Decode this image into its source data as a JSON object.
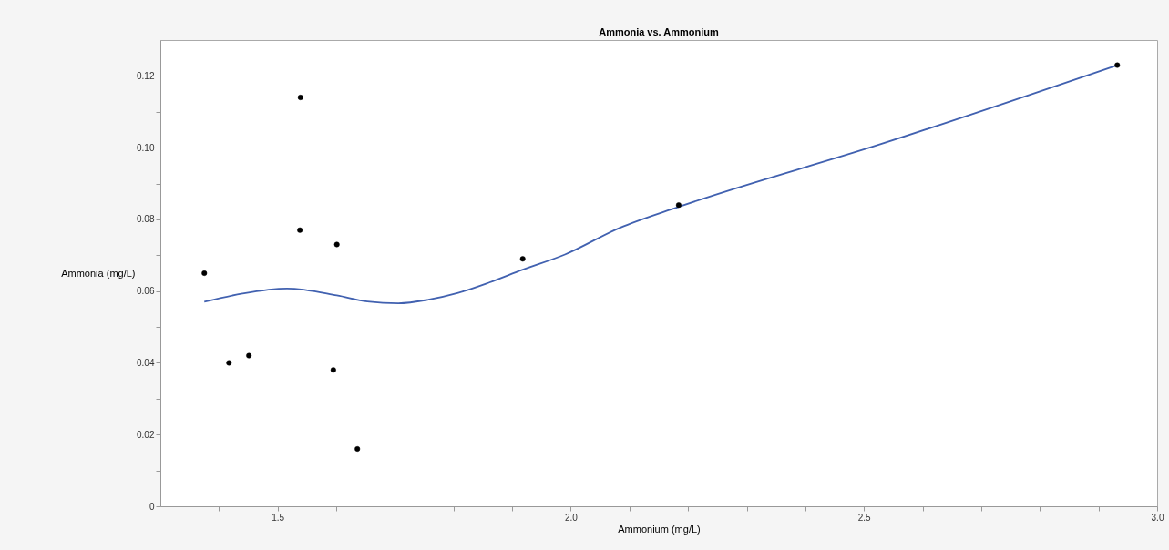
{
  "chart_data": {
    "type": "scatter",
    "title": "Ammonia vs. Ammonium",
    "xlabel": "Ammonium (mg/L)",
    "ylabel": "Ammonia (mg/L)",
    "xlim": [
      1.3,
      3.0
    ],
    "ylim": [
      0,
      0.13
    ],
    "xticks": [
      {
        "value": 1.4,
        "label": null
      },
      {
        "value": 1.5,
        "label": "1.5"
      },
      {
        "value": 1.6,
        "label": null
      },
      {
        "value": 1.7,
        "label": null
      },
      {
        "value": 1.8,
        "label": null
      },
      {
        "value": 1.9,
        "label": null
      },
      {
        "value": 2.0,
        "label": "2.0"
      },
      {
        "value": 2.1,
        "label": null
      },
      {
        "value": 2.2,
        "label": null
      },
      {
        "value": 2.3,
        "label": null
      },
      {
        "value": 2.4,
        "label": null
      },
      {
        "value": 2.5,
        "label": "2.5"
      },
      {
        "value": 2.6,
        "label": null
      },
      {
        "value": 2.7,
        "label": null
      },
      {
        "value": 2.8,
        "label": null
      },
      {
        "value": 2.9,
        "label": null
      },
      {
        "value": 3.0,
        "label": "3.0"
      }
    ],
    "yticks": [
      0,
      {
        "value": 0.01,
        "label": null
      },
      0.02,
      {
        "value": 0.03,
        "label": null
      },
      0.04,
      {
        "value": 0.05,
        "label": null
      },
      0.06,
      {
        "value": 0.07,
        "label": null
      },
      0.08,
      {
        "value": 0.09,
        "label": null
      },
      {
        "value": 0.1,
        "label": "0.10"
      },
      {
        "value": 0.11,
        "label": null
      },
      0.12
    ],
    "grid": false,
    "series": [
      {
        "type": "scatter",
        "marker": "circle",
        "color": "#000000",
        "x": [
          1.375,
          1.417,
          1.451,
          1.539,
          1.538,
          1.601,
          1.595,
          1.636,
          1.918,
          2.184,
          2.932
        ],
        "values": [
          0.065,
          0.04,
          0.042,
          0.114,
          0.077,
          0.073,
          0.038,
          0.016,
          0.069,
          0.084,
          0.123
        ]
      },
      {
        "type": "line",
        "marker": "none",
        "color": "#4161b0",
        "x": [
          1.375,
          1.44,
          1.516,
          1.601,
          1.653,
          1.706,
          1.757,
          1.808,
          1.861,
          1.917,
          1.99,
          2.083,
          2.184,
          2.529,
          2.932
        ],
        "values": [
          0.057,
          0.0593,
          0.0607,
          0.0588,
          0.0571,
          0.0566,
          0.0576,
          0.0595,
          0.0624,
          0.0659,
          0.0702,
          0.0776,
          0.0835,
          0.101,
          0.123
        ]
      }
    ]
  }
}
